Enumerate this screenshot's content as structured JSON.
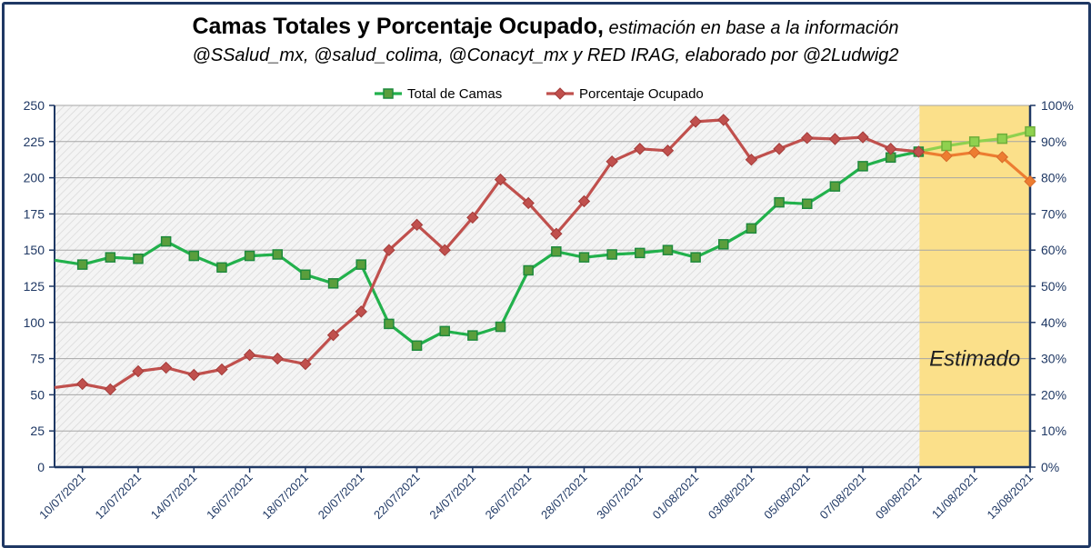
{
  "title": {
    "bold": "Camas Totales y Porcentaje Ocupado,",
    "italic": " estimación en base a la información",
    "line2": "@SSalud_mx, @salud_colima, @Conacyt_mx y RED IRAG, elaborado por @2Ludwig2"
  },
  "annotation": "Estimado",
  "colors": {
    "total": "#22b14c",
    "total_marker": "#5a9e3c",
    "total_est": "#8fd14f",
    "pct": "#c0504d",
    "pct_est": "#ed7d31",
    "axis": "#1f3864",
    "estimated_band": "#fbe08a"
  },
  "chart_data": {
    "type": "line",
    "title": "Camas Totales y Porcentaje Ocupado",
    "dates": [
      "09/07/2021",
      "10/07/2021",
      "11/07/2021",
      "12/07/2021",
      "13/07/2021",
      "14/07/2021",
      "15/07/2021",
      "16/07/2021",
      "17/07/2021",
      "18/07/2021",
      "19/07/2021",
      "20/07/2021",
      "21/07/2021",
      "22/07/2021",
      "23/07/2021",
      "24/07/2021",
      "25/07/2021",
      "26/07/2021",
      "27/07/2021",
      "28/07/2021",
      "29/07/2021",
      "30/07/2021",
      "31/07/2021",
      "01/08/2021",
      "02/08/2021",
      "03/08/2021",
      "04/08/2021",
      "05/08/2021",
      "06/08/2021",
      "07/08/2021",
      "08/08/2021",
      "09/08/2021",
      "10/08/2021",
      "11/08/2021",
      "12/08/2021",
      "13/08/2021"
    ],
    "x_tick_labels": [
      "10/07/2021",
      "12/07/2021",
      "14/07/2021",
      "16/07/2021",
      "18/07/2021",
      "20/07/2021",
      "22/07/2021",
      "24/07/2021",
      "26/07/2021",
      "28/07/2021",
      "30/07/2021",
      "01/08/2021",
      "03/08/2021",
      "05/08/2021",
      "07/08/2021",
      "09/08/2021",
      "11/08/2021",
      "13/08/2021"
    ],
    "series": [
      {
        "name": "Total de Camas",
        "axis": "left",
        "values": [
          143,
          140,
          145,
          144,
          156,
          146,
          138,
          146,
          147,
          133,
          127,
          140,
          99,
          84,
          94,
          91,
          97,
          136,
          149,
          145,
          147,
          148,
          150,
          145,
          154,
          165,
          183,
          182,
          194,
          208,
          214,
          218,
          222,
          225,
          227,
          232
        ],
        "estimated_from_index": 31
      },
      {
        "name": "Porcentaje Ocupado",
        "axis": "right",
        "values": [
          22,
          23,
          21.5,
          26.5,
          27.5,
          25.5,
          27,
          31,
          30,
          28.5,
          36.5,
          43,
          60,
          67,
          60,
          69,
          79.5,
          73,
          64.5,
          73.5,
          84.5,
          88,
          87.5,
          95.5,
          96,
          85,
          88,
          91,
          90.7,
          91.2,
          88,
          87.2,
          86,
          87,
          85.7,
          79
        ],
        "estimated_from_index": 31
      }
    ],
    "y_left": {
      "min": 0,
      "max": 250,
      "ticks": [
        "0",
        "25",
        "50",
        "75",
        "100",
        "125",
        "150",
        "175",
        "200",
        "225",
        "250"
      ]
    },
    "y_right": {
      "min": 0,
      "max": 100,
      "ticks": [
        "0%",
        "10%",
        "20%",
        "30%",
        "40%",
        "50%",
        "60%",
        "70%",
        "80%",
        "90%",
        "100%"
      ]
    },
    "estimated_range": [
      "09/08/2021",
      "13/08/2021"
    ],
    "legend": [
      "Total de Camas",
      "Porcentaje Ocupado"
    ],
    "legend_position": "top-center"
  }
}
